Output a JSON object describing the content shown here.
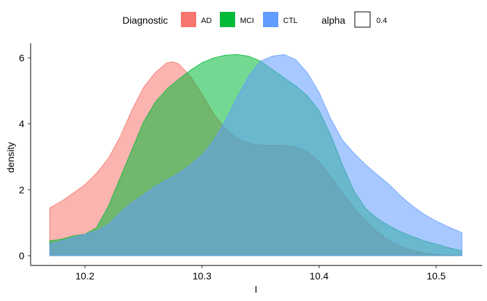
{
  "chart_data": {
    "type": "area",
    "xlabel": "I",
    "ylabel": "density",
    "xlim": [
      10.17,
      10.522
    ],
    "ylim": [
      0,
      6.4
    ],
    "x_ticks": [
      10.2,
      10.3,
      10.4,
      10.5
    ],
    "x_tick_labels": [
      "10.2",
      "10.3",
      "10.4",
      "10.5"
    ],
    "y_ticks": [
      0,
      2,
      4,
      6
    ],
    "y_tick_labels": [
      "0",
      "2",
      "4",
      "6"
    ],
    "grid": false,
    "legend": {
      "placement": "top",
      "title": "Diagnostic",
      "alpha_title": "alpha",
      "alpha_label": "0.4"
    },
    "series": [
      {
        "name": "AD",
        "color": "#F8766D",
        "x": [
          10.17,
          10.18,
          10.19,
          10.2,
          10.21,
          10.22,
          10.23,
          10.24,
          10.25,
          10.26,
          10.27,
          10.275,
          10.28,
          10.29,
          10.3,
          10.31,
          10.32,
          10.33,
          10.34,
          10.35,
          10.36,
          10.37,
          10.38,
          10.39,
          10.4,
          10.41,
          10.42,
          10.43,
          10.44,
          10.45,
          10.46,
          10.47,
          10.48,
          10.49,
          10.5,
          10.51,
          10.522
        ],
        "values": [
          1.45,
          1.65,
          1.9,
          2.15,
          2.5,
          2.95,
          3.6,
          4.4,
          5.1,
          5.55,
          5.85,
          5.88,
          5.82,
          5.45,
          4.9,
          4.3,
          3.85,
          3.55,
          3.42,
          3.35,
          3.35,
          3.35,
          3.3,
          3.15,
          2.85,
          2.4,
          1.9,
          1.45,
          1.05,
          0.72,
          0.45,
          0.28,
          0.16,
          0.08,
          0.04,
          0.02,
          0.01
        ]
      },
      {
        "name": "MCI",
        "color": "#00BA38",
        "x": [
          10.17,
          10.18,
          10.19,
          10.2,
          10.21,
          10.22,
          10.23,
          10.24,
          10.25,
          10.26,
          10.27,
          10.28,
          10.29,
          10.3,
          10.31,
          10.32,
          10.33,
          10.34,
          10.35,
          10.36,
          10.37,
          10.38,
          10.39,
          10.4,
          10.41,
          10.42,
          10.43,
          10.44,
          10.45,
          10.46,
          10.47,
          10.48,
          10.49,
          10.5,
          10.51,
          10.522
        ],
        "values": [
          0.45,
          0.5,
          0.6,
          0.65,
          0.85,
          1.5,
          2.35,
          3.2,
          4.05,
          4.65,
          5.05,
          5.35,
          5.62,
          5.85,
          6.0,
          6.08,
          6.1,
          6.05,
          5.9,
          5.65,
          5.4,
          5.15,
          4.85,
          4.4,
          3.65,
          2.75,
          1.95,
          1.42,
          1.12,
          0.9,
          0.72,
          0.58,
          0.45,
          0.35,
          0.25,
          0.15
        ]
      },
      {
        "name": "CTL",
        "color": "#619CFF",
        "x": [
          10.17,
          10.18,
          10.19,
          10.2,
          10.21,
          10.22,
          10.23,
          10.24,
          10.25,
          10.26,
          10.27,
          10.28,
          10.29,
          10.3,
          10.31,
          10.32,
          10.33,
          10.34,
          10.35,
          10.36,
          10.37,
          10.38,
          10.39,
          10.4,
          10.41,
          10.42,
          10.43,
          10.44,
          10.45,
          10.46,
          10.47,
          10.48,
          10.49,
          10.5,
          10.51,
          10.522
        ],
        "values": [
          0.35,
          0.45,
          0.55,
          0.65,
          0.75,
          0.95,
          1.3,
          1.6,
          1.85,
          2.1,
          2.3,
          2.5,
          2.75,
          3.05,
          3.5,
          4.1,
          4.8,
          5.45,
          5.9,
          6.05,
          6.1,
          5.95,
          5.55,
          4.95,
          4.15,
          3.5,
          3.1,
          2.75,
          2.45,
          2.15,
          1.8,
          1.5,
          1.25,
          1.05,
          0.88,
          0.7
        ]
      }
    ]
  }
}
